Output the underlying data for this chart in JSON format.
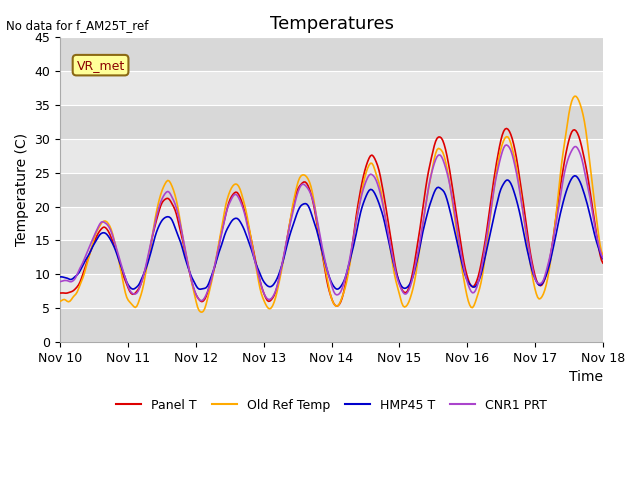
{
  "title": "Temperatures",
  "ylabel": "Temperature (C)",
  "xlabel": "Time",
  "ylim": [
    0,
    45
  ],
  "annotation_text": "No data for f_AM25T_ref",
  "box_label": "VR_met",
  "xtick_labels": [
    "Nov 10",
    "Nov 11",
    "Nov 12",
    "Nov 13",
    "Nov 14",
    "Nov 15",
    "Nov 16",
    "Nov 17",
    "Nov 18"
  ],
  "ytick_vals": [
    0,
    5,
    10,
    15,
    20,
    25,
    30,
    35,
    40,
    45
  ],
  "line_colors": {
    "Panel T": "#dd0000",
    "Old Ref Temp": "#ffaa00",
    "HMP45 T": "#0000cc",
    "CNR1 PRT": "#aa44cc"
  },
  "background_color": "#ffffff",
  "plot_bg_color": "#e8e8e8",
  "band_colors": [
    "#d8d8d8",
    "#e8e8e8"
  ],
  "title_fontsize": 13,
  "label_fontsize": 10,
  "tick_fontsize": 9
}
